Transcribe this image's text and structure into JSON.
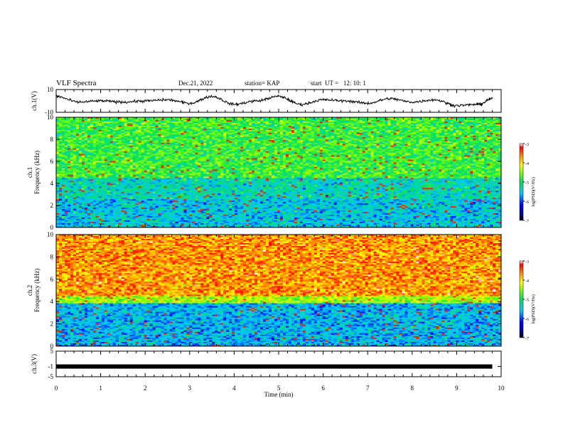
{
  "header": {
    "title": "VLF Spectra",
    "date": "Dec.21, 2022",
    "station": "station= KAP",
    "start": "start  UT =   12: 10: 1"
  },
  "chart_data": [
    {
      "type": "line",
      "panel": "ch1-waveform",
      "ylabel": "ch.1(V)",
      "ylim": [
        -10,
        10
      ],
      "yticks": [
        "10",
        "-10"
      ],
      "x": [
        0,
        0.5,
        1,
        1.5,
        2,
        2.5,
        3,
        3.5,
        4,
        4.5,
        5,
        5.5,
        6,
        6.5,
        7,
        7.5,
        8,
        8.5,
        9,
        9.5,
        9.8
      ],
      "y": [
        4,
        -1,
        0,
        -1,
        0,
        1,
        -2,
        4,
        -3,
        0,
        4,
        -3,
        1,
        0,
        -2,
        2,
        -1,
        1,
        -4,
        -3,
        2
      ],
      "color": "#000000"
    },
    {
      "type": "heatmap",
      "panel": "ch1-spectrogram",
      "ylabel": "ch.1\nFrequency (kHz)",
      "ylim": [
        0,
        10
      ],
      "yticks": [
        "0",
        "2",
        "4",
        "6",
        "8",
        "10"
      ],
      "colorbar": {
        "label": "log(PSD)(V²/Hz)",
        "range": [
          -7,
          -3
        ],
        "ticks": [
          "-3",
          "-4",
          "-5",
          "-6",
          "-7"
        ]
      },
      "dominant_levels": [
        -4.8,
        -5.4
      ]
    },
    {
      "type": "heatmap",
      "panel": "ch2-spectrogram",
      "ylabel": "ch.2\nFrequency (kHz)",
      "ylim": [
        0,
        10
      ],
      "yticks": [
        "0",
        "2",
        "4",
        "6",
        "8",
        "10"
      ],
      "colorbar": {
        "label": "log(PSD)(V²/Hz)",
        "range": [
          -7,
          -3
        ],
        "ticks": [
          "-3",
          "-4",
          "-5",
          "-6",
          "-7"
        ]
      },
      "dominant_levels": [
        -3.7,
        -5.6
      ]
    },
    {
      "type": "line",
      "panel": "ch3-waveform",
      "ylabel": "ch.3(V)",
      "ylim": [
        -5,
        5
      ],
      "yticks": [
        "5",
        "-1",
        "-5"
      ],
      "x": [
        0,
        9.8
      ],
      "y": [
        -1,
        -1
      ],
      "color": "#000000"
    }
  ],
  "time_axis": {
    "label": "Time  (min)",
    "range": [
      0,
      10
    ],
    "ticks": [
      "0",
      "1",
      "2",
      "3",
      "4",
      "5",
      "6",
      "7",
      "8",
      "9",
      "10"
    ]
  }
}
